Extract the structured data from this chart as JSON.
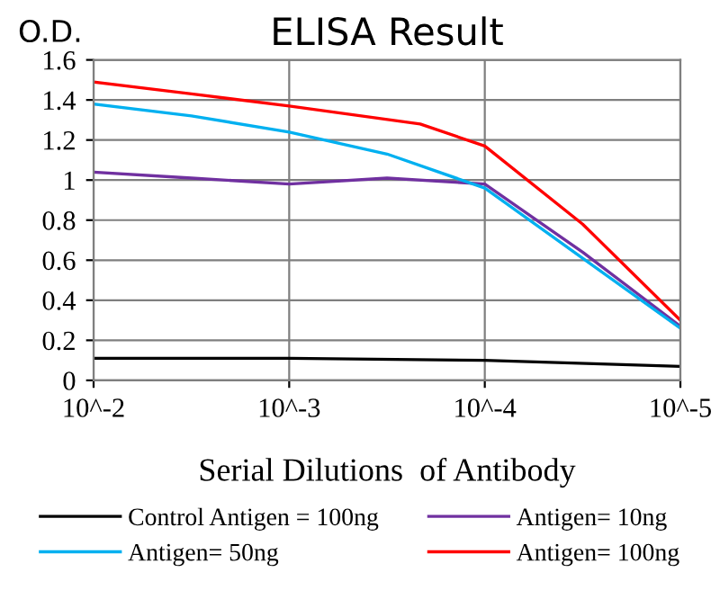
{
  "chart_data": {
    "type": "line",
    "title": "ELISA Result",
    "ylabel": "O.D.",
    "xlabel": "Serial Dilutions  of Antibody",
    "log": "x",
    "xlim": [
      0.01,
      1e-05
    ],
    "xticks": [
      {
        "value": 0.01,
        "label": "10^-2"
      },
      {
        "value": 0.001,
        "label": "10^-3"
      },
      {
        "value": 0.0001,
        "label": "10^-4"
      },
      {
        "value": 1e-05,
        "label": "10^-5"
      }
    ],
    "ylim": [
      0,
      1.6
    ],
    "yticks": [
      0,
      0.2,
      0.4,
      0.6,
      0.8,
      1,
      1.2,
      1.4,
      1.6
    ],
    "grid": true,
    "legend": "bottom",
    "line_style": "solid",
    "series": [
      {
        "name": "Control Antigen = 100ng",
        "color": "#000000",
        "x": [
          0.01,
          0.001,
          0.0001,
          1e-05
        ],
        "values": [
          0.11,
          0.11,
          0.1,
          0.07
        ]
      },
      {
        "name": "Antigen= 10ng",
        "color": "#7030a0",
        "x": [
          0.01,
          0.00316,
          0.001,
          0.000316,
          0.0001,
          3.16e-05,
          1e-05
        ],
        "values": [
          1.04,
          1.01,
          0.98,
          1.01,
          0.98,
          0.64,
          0.27
        ]
      },
      {
        "name": "Antigen= 50ng",
        "color": "#00b0f0",
        "x": [
          0.01,
          0.00316,
          0.001,
          0.000316,
          0.0001,
          3.16e-05,
          1e-05
        ],
        "values": [
          1.38,
          1.32,
          1.24,
          1.13,
          0.96,
          0.61,
          0.26
        ]
      },
      {
        "name": "Antigen= 100ng",
        "color": "#ff0000",
        "x": [
          0.01,
          0.00316,
          0.001,
          0.000214,
          0.0001,
          3.16e-05,
          1e-05
        ],
        "values": [
          1.49,
          1.43,
          1.37,
          1.28,
          1.17,
          0.78,
          0.3
        ]
      }
    ]
  }
}
